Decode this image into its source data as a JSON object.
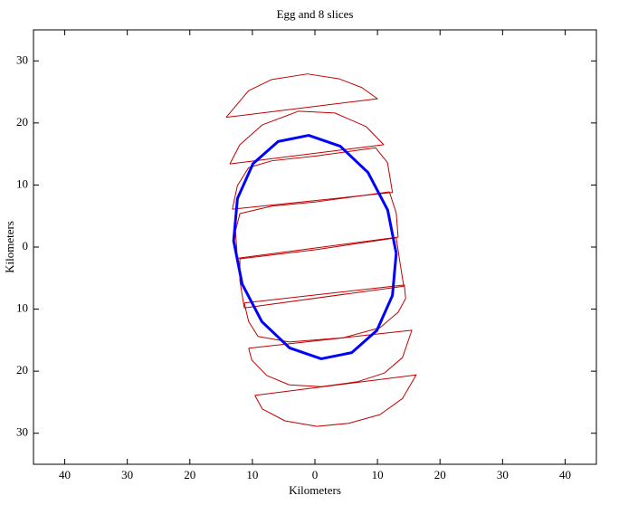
{
  "chart_data": {
    "type": "line",
    "title": "Egg and 8 slices",
    "xlabel": "Kilometers",
    "ylabel": "Kilometers",
    "xlim": [
      -45,
      45
    ],
    "ylim": [
      -35,
      35
    ],
    "xticks": [
      {
        "value": -40,
        "label": "40"
      },
      {
        "value": -30,
        "label": "30"
      },
      {
        "value": -20,
        "label": "20"
      },
      {
        "value": -10,
        "label": "10"
      },
      0,
      10,
      20,
      30,
      40
    ],
    "yticks": [
      {
        "value": -30,
        "label": "30"
      },
      {
        "value": -20,
        "label": "20"
      },
      {
        "value": -10,
        "label": "10"
      },
      0,
      10,
      20,
      30
    ],
    "series": [
      {
        "color": "#c00000",
        "x": [
          -14.2,
          -10.6,
          -6.9,
          -1.2,
          3.9,
          7.5,
          10.0,
          -14.2
        ],
        "y": [
          20.9,
          25.2,
          27.0,
          27.9,
          27.1,
          25.7,
          23.9,
          20.9
        ]
      },
      {
        "color": "#c00000",
        "x": [
          -13.6,
          -12.0,
          -8.4,
          -2.6,
          3.2,
          8.2,
          11.0,
          -13.6
        ],
        "y": [
          13.4,
          16.5,
          19.7,
          21.9,
          21.6,
          19.4,
          16.5,
          13.4
        ]
      },
      {
        "color": "#c00000",
        "x": [
          -13.2,
          -12.4,
          -10.6,
          -6.9,
          0.3,
          9.7,
          11.6,
          12.4,
          -13.2
        ],
        "y": [
          6.1,
          9.9,
          12.8,
          13.9,
          14.7,
          16.0,
          13.6,
          8.8,
          6.1
        ]
      },
      {
        "color": "#c00000",
        "x": [
          -12.4,
          -12.7,
          -12.0,
          -6.9,
          0.3,
          11.9,
          13.0,
          13.3,
          -12.4
        ],
        "y": [
          -1.8,
          2.6,
          5.4,
          6.6,
          7.3,
          8.9,
          5.5,
          1.6,
          -1.8
        ]
      },
      {
        "color": "#c00000",
        "x": [
          -11.3,
          -12.0,
          -12.0,
          0.3,
          13.0,
          13.6,
          14.2,
          -11.3
        ],
        "y": [
          -9.8,
          -5.4,
          -1.9,
          -0.4,
          1.5,
          -2.5,
          -6.3,
          -9.8
        ]
      },
      {
        "color": "#c00000",
        "x": [
          -11.3,
          14.3,
          14.5,
          13.3,
          10.4,
          4.6,
          -4.1,
          -9.1,
          -10.6,
          -11.3
        ],
        "y": [
          -9.0,
          -6.1,
          -8.3,
          -10.5,
          -13.0,
          -14.6,
          -15.3,
          -14.4,
          -12.0,
          -9.0
        ]
      },
      {
        "color": "#c00000",
        "x": [
          -10.6,
          15.5,
          14.0,
          11.1,
          6.8,
          1.0,
          -4.1,
          -7.7,
          -10.1,
          -10.6
        ],
        "y": [
          -16.3,
          -13.4,
          -17.8,
          -20.3,
          -21.7,
          -22.5,
          -22.2,
          -20.7,
          -18.2,
          -16.3
        ]
      },
      {
        "color": "#c00000",
        "x": [
          -9.6,
          16.2,
          14.0,
          10.4,
          5.4,
          0.3,
          -4.8,
          -8.4,
          -9.6
        ],
        "y": [
          -23.9,
          -20.6,
          -24.4,
          -27.0,
          -28.4,
          -28.9,
          -28.0,
          -26.1,
          -23.9
        ]
      },
      {
        "color": "#0000ff",
        "x": [
          13,
          11.63,
          8.48,
          4.05,
          -1,
          -5.89,
          -9.9,
          -12.39,
          -13,
          -11.63,
          -8.48,
          -4.05,
          1,
          5.89,
          9.9,
          12.39,
          13
        ],
        "y": [
          -1,
          5.97,
          12.02,
          16.25,
          18,
          17.01,
          13.44,
          7.81,
          1,
          -5.97,
          -12.02,
          -16.25,
          -18,
          -17.01,
          -13.44,
          -7.81,
          -1
        ]
      }
    ]
  }
}
